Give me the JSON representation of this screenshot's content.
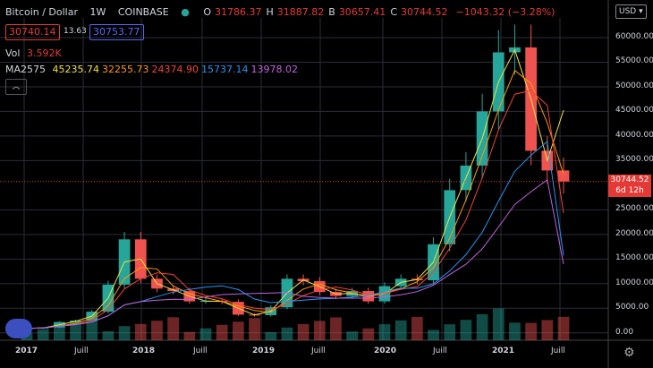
{
  "header": {
    "symbol": "Bitcoin / Dollar",
    "interval": "1W",
    "exchange": "COINBASE",
    "ohlc": [
      {
        "k": "O",
        "v": "31786.37"
      },
      {
        "k": "H",
        "v": "31887.82"
      },
      {
        "k": "B",
        "v": "30657.41"
      },
      {
        "k": "C",
        "v": "30744.52"
      },
      {
        "k": "",
        "v": "−1043.32 (−3.28%)"
      }
    ],
    "bid": "30740.14",
    "spread": "13.63",
    "ask": "30753.77",
    "vol_label": "Vol",
    "vol_value": "3.592K",
    "ma_label": "MA2575",
    "ma_values": [
      "45235.74",
      "32255.73",
      "24374.90",
      "15737.14",
      "13978.02"
    ],
    "ma_colors": [
      "#f0e040",
      "#ff9800",
      "#f44336",
      "#2196f3",
      "#c060e0"
    ],
    "collapse_icon": "chevron-up-icon"
  },
  "currency": "USD",
  "price_tag": {
    "price": "30744.52",
    "countdown": "6d 12h"
  },
  "y_ticks": [
    "60000.00",
    "55000.00",
    "50000.00",
    "45000.00",
    "40000.00",
    "35000.00",
    "25000.00",
    "20000.00",
    "15000.00",
    "10000.00",
    "5000.00",
    "0.00"
  ],
  "x_ticks": [
    {
      "label": "2017",
      "major": true
    },
    {
      "label": "Juill",
      "major": false
    },
    {
      "label": "2018",
      "major": true
    },
    {
      "label": "Juill",
      "major": false
    },
    {
      "label": "2019",
      "major": true
    },
    {
      "label": "Juill",
      "major": false
    },
    {
      "label": "2020",
      "major": true
    },
    {
      "label": "Juill",
      "major": false
    },
    {
      "label": "2021",
      "major": true
    },
    {
      "label": "Juill",
      "major": false
    }
  ],
  "chart_data": {
    "type": "candlestick",
    "x": [
      "2017-01",
      "2017-03",
      "2017-05",
      "2017-07",
      "2017-09",
      "2017-11",
      "2017-12",
      "2018-01",
      "2018-02",
      "2018-04",
      "2018-06",
      "2018-08",
      "2018-10",
      "2018-12",
      "2019-02",
      "2019-04",
      "2019-06",
      "2019-07",
      "2019-09",
      "2019-11",
      "2020-01",
      "2020-03",
      "2020-05",
      "2020-07",
      "2020-09",
      "2020-11",
      "2020-12",
      "2021-01",
      "2021-02",
      "2021-03",
      "2021-04",
      "2021-05",
      "2021-06",
      "2021-07"
    ],
    "close": [
      900,
      1100,
      2200,
      2500,
      4300,
      9800,
      19000,
      11000,
      9000,
      8500,
      6400,
      6500,
      6300,
      3700,
      3600,
      5200,
      11000,
      10500,
      8300,
      7500,
      8500,
      6400,
      9500,
      11000,
      10700,
      18000,
      29000,
      34000,
      45000,
      57000,
      58000,
      37000,
      33000,
      30744.52
    ],
    "ma_series": [
      {
        "label": "45235.74",
        "end": 45235.74
      },
      {
        "label": "32255.73",
        "end": 32255.73
      },
      {
        "label": "24374.90",
        "end": 24374.9
      },
      {
        "label": "15737.14",
        "end": 15737.14
      },
      {
        "label": "13978.02",
        "end": 13978.02
      }
    ],
    "ylim": [
      -1500,
      64000
    ],
    "grid": true
  }
}
